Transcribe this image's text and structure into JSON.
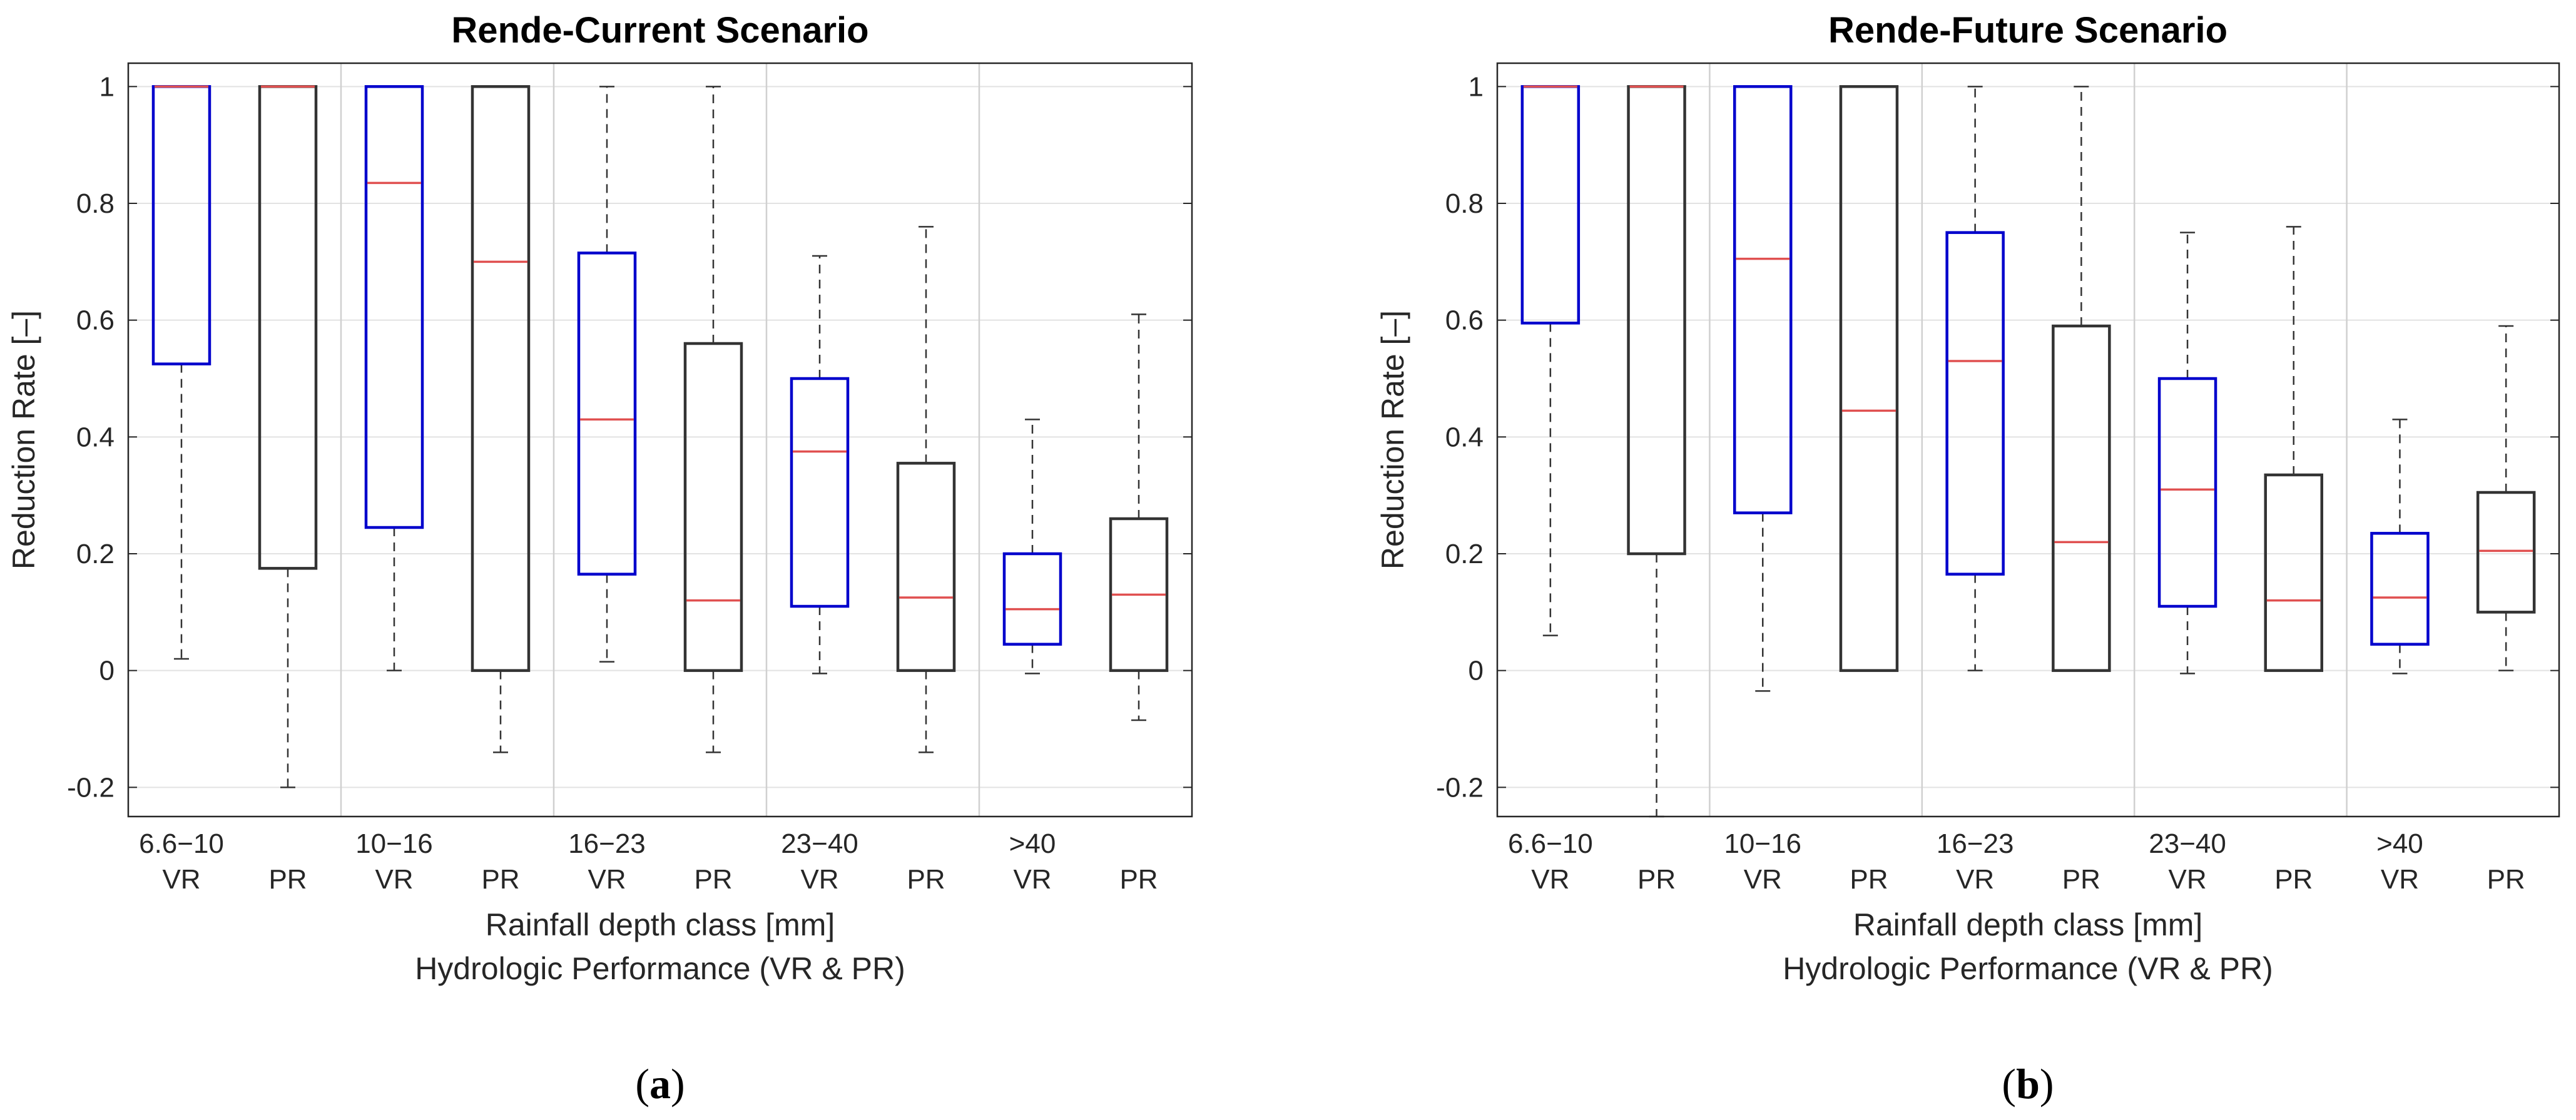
{
  "chart_data": [
    {
      "type": "box",
      "panel_label": "a",
      "title": "Rende-Current Scenario",
      "ylabel": "Reduction Rate [–]",
      "xlabel": "Rainfall depth class [mm]",
      "xlabel2": "Hydrologic Performance (VR & PR)",
      "ylim": [
        -0.25,
        1.04
      ],
      "yticks": [
        -0.2,
        0,
        0.2,
        0.4,
        0.6,
        0.8,
        1
      ],
      "ytick_labels": [
        "-0.2",
        "0",
        "0.2",
        "0.4",
        "0.6",
        "0.8",
        "1"
      ],
      "grid": true,
      "classes": [
        "6.6−10",
        "10−16",
        "16−23",
        "23−40",
        ">40"
      ],
      "groups": [
        "VR",
        "PR"
      ],
      "colors": {
        "VR": "#0000cc",
        "PR": "#333333",
        "median": "#e05050"
      },
      "boxes": [
        {
          "class": "6.6−10",
          "group": "VR",
          "whisker_low": 0.02,
          "q1": 0.525,
          "median": 1.0,
          "q3": 1.0,
          "whisker_high": 1.0
        },
        {
          "class": "6.6−10",
          "group": "PR",
          "whisker_low": -0.2,
          "q1": 0.175,
          "median": 1.0,
          "q3": 1.0,
          "whisker_high": 1.0
        },
        {
          "class": "10−16",
          "group": "VR",
          "whisker_low": 0.0,
          "q1": 0.245,
          "median": 0.835,
          "q3": 1.0,
          "whisker_high": 1.0
        },
        {
          "class": "10−16",
          "group": "PR",
          "whisker_low": -0.14,
          "q1": 0.0,
          "median": 0.7,
          "q3": 1.0,
          "whisker_high": 1.0
        },
        {
          "class": "16−23",
          "group": "VR",
          "whisker_low": 0.015,
          "q1": 0.165,
          "median": 0.43,
          "q3": 0.715,
          "whisker_high": 1.0
        },
        {
          "class": "16−23",
          "group": "PR",
          "whisker_low": -0.14,
          "q1": 0.0,
          "median": 0.12,
          "q3": 0.56,
          "whisker_high": 1.0
        },
        {
          "class": "23−40",
          "group": "VR",
          "whisker_low": -0.005,
          "q1": 0.11,
          "median": 0.375,
          "q3": 0.5,
          "whisker_high": 0.71
        },
        {
          "class": "23−40",
          "group": "PR",
          "whisker_low": -0.14,
          "q1": 0.0,
          "median": 0.125,
          "q3": 0.355,
          "whisker_high": 0.76
        },
        {
          "class": ">40",
          "group": "VR",
          "whisker_low": -0.005,
          "q1": 0.045,
          "median": 0.105,
          "q3": 0.2,
          "whisker_high": 0.43
        },
        {
          "class": ">40",
          "group": "PR",
          "whisker_low": -0.085,
          "q1": 0.0,
          "median": 0.13,
          "q3": 0.26,
          "whisker_high": 0.61
        }
      ]
    },
    {
      "type": "box",
      "panel_label": "b",
      "title": "Rende-Future Scenario",
      "ylabel": "Reduction Rate [–]",
      "xlabel": "Rainfall depth class [mm]",
      "xlabel2": "Hydrologic Performance (VR & PR)",
      "ylim": [
        -0.25,
        1.04
      ],
      "yticks": [
        -0.2,
        0,
        0.2,
        0.4,
        0.6,
        0.8,
        1
      ],
      "ytick_labels": [
        "-0.2",
        "0",
        "0.2",
        "0.4",
        "0.6",
        "0.8",
        "1"
      ],
      "grid": true,
      "classes": [
        "6.6−10",
        "10−16",
        "16−23",
        "23−40",
        ">40"
      ],
      "groups": [
        "VR",
        "PR"
      ],
      "colors": {
        "VR": "#0000cc",
        "PR": "#333333",
        "median": "#e05050"
      },
      "boxes": [
        {
          "class": "6.6−10",
          "group": "VR",
          "whisker_low": 0.06,
          "q1": 0.595,
          "median": 1.0,
          "q3": 1.0,
          "whisker_high": 1.0
        },
        {
          "class": "6.6−10",
          "group": "PR",
          "whisker_low": -0.25,
          "q1": 0.2,
          "median": 1.0,
          "q3": 1.0,
          "whisker_high": 1.0
        },
        {
          "class": "10−16",
          "group": "VR",
          "whisker_low": -0.035,
          "q1": 0.27,
          "median": 0.705,
          "q3": 1.0,
          "whisker_high": 1.0
        },
        {
          "class": "10−16",
          "group": "PR",
          "whisker_low": 0.0,
          "q1": 0.0,
          "median": 0.445,
          "q3": 1.0,
          "whisker_high": 1.0
        },
        {
          "class": "16−23",
          "group": "VR",
          "whisker_low": 0.0,
          "q1": 0.165,
          "median": 0.53,
          "q3": 0.75,
          "whisker_high": 1.0
        },
        {
          "class": "16−23",
          "group": "PR",
          "whisker_low": 0.0,
          "q1": 0.0,
          "median": 0.22,
          "q3": 0.59,
          "whisker_high": 1.0
        },
        {
          "class": "23−40",
          "group": "VR",
          "whisker_low": -0.005,
          "q1": 0.11,
          "median": 0.31,
          "q3": 0.5,
          "whisker_high": 0.75
        },
        {
          "class": "23−40",
          "group": "PR",
          "whisker_low": 0.0,
          "q1": 0.0,
          "median": 0.12,
          "q3": 0.335,
          "whisker_high": 0.76
        },
        {
          "class": ">40",
          "group": "VR",
          "whisker_low": -0.005,
          "q1": 0.045,
          "median": 0.125,
          "q3": 0.235,
          "whisker_high": 0.43
        },
        {
          "class": ">40",
          "group": "PR",
          "whisker_low": 0.0,
          "q1": 0.1,
          "median": 0.205,
          "q3": 0.305,
          "whisker_high": 0.59
        }
      ]
    }
  ]
}
